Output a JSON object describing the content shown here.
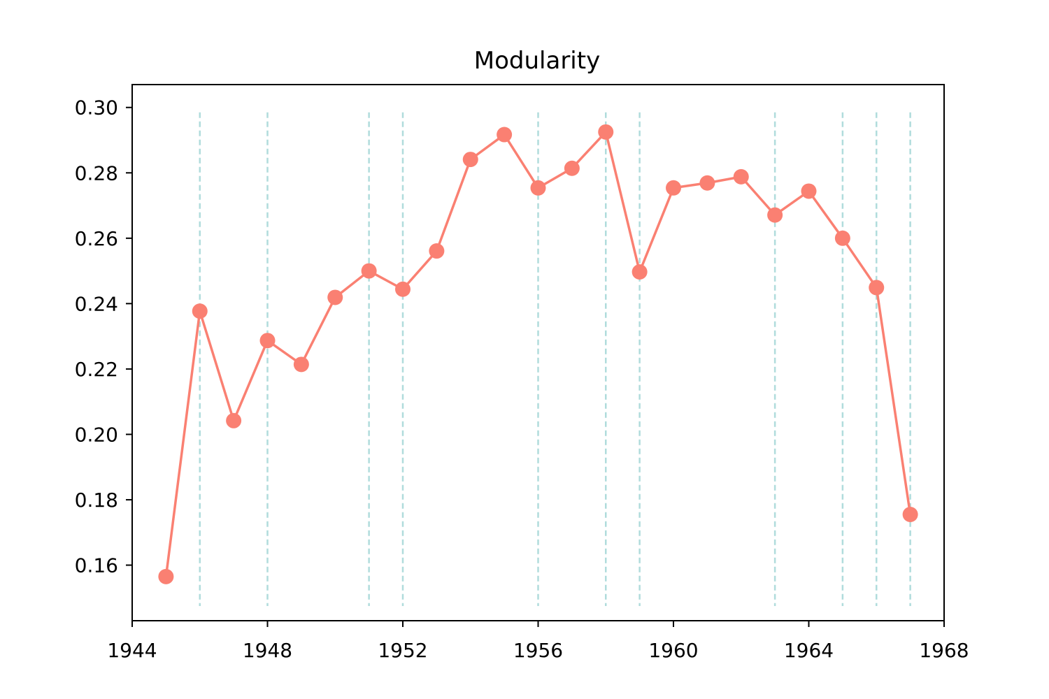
{
  "chart_data": {
    "type": "line",
    "title": "Modularity",
    "xlabel": "",
    "ylabel": "",
    "xlim": [
      1944,
      1968
    ],
    "ylim": [
      0.143,
      0.307
    ],
    "x_ticks": [
      1944,
      1948,
      1952,
      1956,
      1960,
      1964,
      1968
    ],
    "y_ticks": [
      0.16,
      0.18,
      0.2,
      0.22,
      0.24,
      0.26,
      0.28,
      0.3
    ],
    "x_tick_labels": [
      "1944",
      "1948",
      "1952",
      "1956",
      "1960",
      "1964",
      "1968"
    ],
    "y_tick_labels": [
      "0.16",
      "0.18",
      "0.20",
      "0.22",
      "0.24",
      "0.26",
      "0.28",
      "0.30"
    ],
    "grid": false,
    "legend": "none",
    "series": [
      {
        "color": "#fa8072",
        "marker": "circle",
        "x": [
          1945,
          1946,
          1947,
          1948,
          1949,
          1950,
          1951,
          1952,
          1953,
          1954,
          1955,
          1956,
          1957,
          1958,
          1959,
          1960,
          1961,
          1962,
          1963,
          1964,
          1965,
          1966,
          1967
        ],
        "y": [
          0.1565,
          0.2377,
          0.2042,
          0.2287,
          0.2214,
          0.2419,
          0.25,
          0.2444,
          0.2561,
          0.2841,
          0.2917,
          0.2754,
          0.2814,
          0.2925,
          0.2497,
          0.2754,
          0.2769,
          0.2788,
          0.2671,
          0.2744,
          0.26,
          0.2449,
          0.1755
        ]
      }
    ],
    "vertical_lines": {
      "color": "#b0dcdc",
      "style": "dashed",
      "x": [
        1946,
        1948,
        1951,
        1952,
        1956,
        1958,
        1959,
        1963,
        1965,
        1966,
        1967
      ],
      "y_range": [
        0.1475,
        0.2985
      ]
    }
  }
}
